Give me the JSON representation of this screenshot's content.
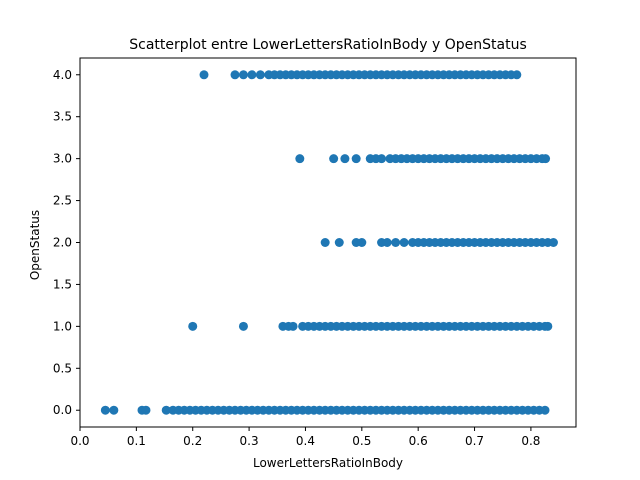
{
  "chart_data": {
    "type": "scatter",
    "title": "Scatterplot entre LowerLettersRatioInBody y OpenStatus",
    "xlabel": "LowerLettersRatioInBody",
    "ylabel": "OpenStatus",
    "xlim": [
      0.0,
      0.88
    ],
    "ylim": [
      -0.2,
      4.2
    ],
    "xticks": [
      0.0,
      0.1,
      0.2,
      0.3,
      0.4,
      0.5,
      0.6,
      0.7,
      0.8
    ],
    "xtick_labels": [
      "0.0",
      "0.1",
      "0.2",
      "0.3",
      "0.4",
      "0.5",
      "0.6",
      "0.7",
      "0.8"
    ],
    "yticks": [
      0.0,
      0.5,
      1.0,
      1.5,
      2.0,
      2.5,
      3.0,
      3.5,
      4.0
    ],
    "ytick_labels": [
      "0.0",
      "0.5",
      "1.0",
      "1.5",
      "2.0",
      "2.5",
      "3.0",
      "3.5",
      "4.0"
    ],
    "grid": false,
    "marker_color": "#1f77b4",
    "series": [
      {
        "points": [
          [
            0.045,
            0
          ],
          [
            0.06,
            0
          ],
          [
            0.11,
            0
          ],
          [
            0.117,
            0
          ],
          [
            0.153,
            0
          ],
          [
            0.165,
            0
          ],
          [
            0.175,
            0
          ],
          [
            0.185,
            0
          ],
          [
            0.195,
            0
          ],
          [
            0.205,
            0
          ],
          [
            0.215,
            0
          ],
          [
            0.225,
            0
          ],
          [
            0.235,
            0
          ],
          [
            0.245,
            0
          ],
          [
            0.255,
            0
          ],
          [
            0.265,
            0
          ],
          [
            0.275,
            0
          ],
          [
            0.285,
            0
          ],
          [
            0.295,
            0
          ],
          [
            0.305,
            0
          ],
          [
            0.315,
            0
          ],
          [
            0.325,
            0
          ],
          [
            0.335,
            0
          ],
          [
            0.345,
            0
          ],
          [
            0.355,
            0
          ],
          [
            0.365,
            0
          ],
          [
            0.375,
            0
          ],
          [
            0.385,
            0
          ],
          [
            0.395,
            0
          ],
          [
            0.405,
            0
          ],
          [
            0.415,
            0
          ],
          [
            0.425,
            0
          ],
          [
            0.435,
            0
          ],
          [
            0.445,
            0
          ],
          [
            0.455,
            0
          ],
          [
            0.465,
            0
          ],
          [
            0.475,
            0
          ],
          [
            0.485,
            0
          ],
          [
            0.495,
            0
          ],
          [
            0.505,
            0
          ],
          [
            0.515,
            0
          ],
          [
            0.525,
            0
          ],
          [
            0.535,
            0
          ],
          [
            0.545,
            0
          ],
          [
            0.555,
            0
          ],
          [
            0.565,
            0
          ],
          [
            0.575,
            0
          ],
          [
            0.585,
            0
          ],
          [
            0.595,
            0
          ],
          [
            0.605,
            0
          ],
          [
            0.615,
            0
          ],
          [
            0.625,
            0
          ],
          [
            0.635,
            0
          ],
          [
            0.645,
            0
          ],
          [
            0.655,
            0
          ],
          [
            0.665,
            0
          ],
          [
            0.675,
            0
          ],
          [
            0.685,
            0
          ],
          [
            0.695,
            0
          ],
          [
            0.705,
            0
          ],
          [
            0.715,
            0
          ],
          [
            0.725,
            0
          ],
          [
            0.735,
            0
          ],
          [
            0.745,
            0
          ],
          [
            0.755,
            0
          ],
          [
            0.765,
            0
          ],
          [
            0.775,
            0
          ],
          [
            0.785,
            0
          ],
          [
            0.795,
            0
          ],
          [
            0.805,
            0
          ],
          [
            0.815,
            0
          ],
          [
            0.825,
            0
          ],
          [
            0.2,
            1
          ],
          [
            0.29,
            1
          ],
          [
            0.36,
            1
          ],
          [
            0.37,
            1
          ],
          [
            0.378,
            1
          ],
          [
            0.395,
            1
          ],
          [
            0.405,
            1
          ],
          [
            0.415,
            1
          ],
          [
            0.425,
            1
          ],
          [
            0.435,
            1
          ],
          [
            0.445,
            1
          ],
          [
            0.455,
            1
          ],
          [
            0.465,
            1
          ],
          [
            0.475,
            1
          ],
          [
            0.485,
            1
          ],
          [
            0.495,
            1
          ],
          [
            0.505,
            1
          ],
          [
            0.515,
            1
          ],
          [
            0.525,
            1
          ],
          [
            0.535,
            1
          ],
          [
            0.545,
            1
          ],
          [
            0.555,
            1
          ],
          [
            0.565,
            1
          ],
          [
            0.575,
            1
          ],
          [
            0.585,
            1
          ],
          [
            0.595,
            1
          ],
          [
            0.605,
            1
          ],
          [
            0.615,
            1
          ],
          [
            0.625,
            1
          ],
          [
            0.635,
            1
          ],
          [
            0.645,
            1
          ],
          [
            0.655,
            1
          ],
          [
            0.665,
            1
          ],
          [
            0.675,
            1
          ],
          [
            0.685,
            1
          ],
          [
            0.695,
            1
          ],
          [
            0.705,
            1
          ],
          [
            0.715,
            1
          ],
          [
            0.725,
            1
          ],
          [
            0.735,
            1
          ],
          [
            0.745,
            1
          ],
          [
            0.755,
            1
          ],
          [
            0.765,
            1
          ],
          [
            0.775,
            1
          ],
          [
            0.785,
            1
          ],
          [
            0.795,
            1
          ],
          [
            0.805,
            1
          ],
          [
            0.815,
            1
          ],
          [
            0.825,
            1
          ],
          [
            0.83,
            1
          ],
          [
            0.435,
            2
          ],
          [
            0.46,
            2
          ],
          [
            0.49,
            2
          ],
          [
            0.5,
            2
          ],
          [
            0.535,
            2
          ],
          [
            0.545,
            2
          ],
          [
            0.56,
            2
          ],
          [
            0.575,
            2
          ],
          [
            0.59,
            2
          ],
          [
            0.6,
            2
          ],
          [
            0.61,
            2
          ],
          [
            0.62,
            2
          ],
          [
            0.63,
            2
          ],
          [
            0.64,
            2
          ],
          [
            0.65,
            2
          ],
          [
            0.66,
            2
          ],
          [
            0.67,
            2
          ],
          [
            0.68,
            2
          ],
          [
            0.69,
            2
          ],
          [
            0.7,
            2
          ],
          [
            0.71,
            2
          ],
          [
            0.72,
            2
          ],
          [
            0.73,
            2
          ],
          [
            0.74,
            2
          ],
          [
            0.75,
            2
          ],
          [
            0.76,
            2
          ],
          [
            0.77,
            2
          ],
          [
            0.78,
            2
          ],
          [
            0.79,
            2
          ],
          [
            0.8,
            2
          ],
          [
            0.81,
            2
          ],
          [
            0.82,
            2
          ],
          [
            0.83,
            2
          ],
          [
            0.84,
            2
          ],
          [
            0.39,
            3
          ],
          [
            0.45,
            3
          ],
          [
            0.47,
            3
          ],
          [
            0.49,
            3
          ],
          [
            0.515,
            3
          ],
          [
            0.525,
            3
          ],
          [
            0.535,
            3
          ],
          [
            0.55,
            3
          ],
          [
            0.56,
            3
          ],
          [
            0.57,
            3
          ],
          [
            0.58,
            3
          ],
          [
            0.59,
            3
          ],
          [
            0.6,
            3
          ],
          [
            0.61,
            3
          ],
          [
            0.62,
            3
          ],
          [
            0.63,
            3
          ],
          [
            0.64,
            3
          ],
          [
            0.65,
            3
          ],
          [
            0.66,
            3
          ],
          [
            0.67,
            3
          ],
          [
            0.68,
            3
          ],
          [
            0.69,
            3
          ],
          [
            0.7,
            3
          ],
          [
            0.71,
            3
          ],
          [
            0.72,
            3
          ],
          [
            0.73,
            3
          ],
          [
            0.74,
            3
          ],
          [
            0.75,
            3
          ],
          [
            0.76,
            3
          ],
          [
            0.77,
            3
          ],
          [
            0.78,
            3
          ],
          [
            0.79,
            3
          ],
          [
            0.8,
            3
          ],
          [
            0.81,
            3
          ],
          [
            0.82,
            3
          ],
          [
            0.826,
            3
          ],
          [
            0.22,
            4
          ],
          [
            0.275,
            4
          ],
          [
            0.29,
            4
          ],
          [
            0.305,
            4
          ],
          [
            0.32,
            4
          ],
          [
            0.335,
            4
          ],
          [
            0.345,
            4
          ],
          [
            0.355,
            4
          ],
          [
            0.365,
            4
          ],
          [
            0.375,
            4
          ],
          [
            0.385,
            4
          ],
          [
            0.395,
            4
          ],
          [
            0.405,
            4
          ],
          [
            0.415,
            4
          ],
          [
            0.425,
            4
          ],
          [
            0.435,
            4
          ],
          [
            0.445,
            4
          ],
          [
            0.455,
            4
          ],
          [
            0.465,
            4
          ],
          [
            0.475,
            4
          ],
          [
            0.485,
            4
          ],
          [
            0.495,
            4
          ],
          [
            0.505,
            4
          ],
          [
            0.515,
            4
          ],
          [
            0.525,
            4
          ],
          [
            0.535,
            4
          ],
          [
            0.545,
            4
          ],
          [
            0.555,
            4
          ],
          [
            0.565,
            4
          ],
          [
            0.575,
            4
          ],
          [
            0.585,
            4
          ],
          [
            0.595,
            4
          ],
          [
            0.605,
            4
          ],
          [
            0.615,
            4
          ],
          [
            0.625,
            4
          ],
          [
            0.635,
            4
          ],
          [
            0.645,
            4
          ],
          [
            0.655,
            4
          ],
          [
            0.665,
            4
          ],
          [
            0.675,
            4
          ],
          [
            0.685,
            4
          ],
          [
            0.695,
            4
          ],
          [
            0.705,
            4
          ],
          [
            0.715,
            4
          ],
          [
            0.725,
            4
          ],
          [
            0.735,
            4
          ],
          [
            0.745,
            4
          ],
          [
            0.755,
            4
          ],
          [
            0.765,
            4
          ],
          [
            0.775,
            4
          ]
        ]
      }
    ]
  }
}
